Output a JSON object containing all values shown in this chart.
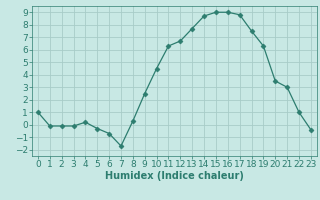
{
  "x": [
    0,
    1,
    2,
    3,
    4,
    5,
    6,
    7,
    8,
    9,
    10,
    11,
    12,
    13,
    14,
    15,
    16,
    17,
    18,
    19,
    20,
    21,
    22,
    23
  ],
  "y": [
    1,
    -0.1,
    -0.1,
    -0.1,
    0.2,
    -0.3,
    -0.7,
    -1.7,
    0.3,
    2.5,
    4.5,
    6.3,
    6.7,
    7.7,
    8.7,
    9.0,
    9.0,
    8.8,
    7.5,
    6.3,
    3.5,
    3.0,
    1.0,
    -0.4
  ],
  "line_color": "#2d7d6f",
  "marker": "D",
  "marker_size": 2.5,
  "bg_color": "#c8e8e4",
  "grid_color": "#a8ccc8",
  "xlabel": "Humidex (Indice chaleur)",
  "xlabel_fontsize": 7,
  "tick_fontsize": 6.5,
  "xlim": [
    -0.5,
    23.5
  ],
  "ylim": [
    -2.5,
    9.5
  ],
  "yticks": [
    -2,
    -1,
    0,
    1,
    2,
    3,
    4,
    5,
    6,
    7,
    8,
    9
  ],
  "xticks": [
    0,
    1,
    2,
    3,
    4,
    5,
    6,
    7,
    8,
    9,
    10,
    11,
    12,
    13,
    14,
    15,
    16,
    17,
    18,
    19,
    20,
    21,
    22,
    23
  ]
}
